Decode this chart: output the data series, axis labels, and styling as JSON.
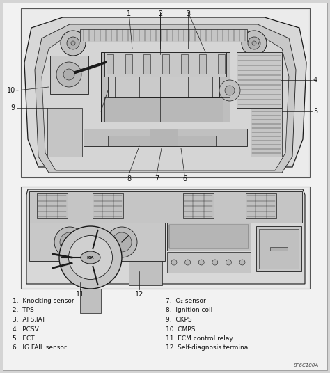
{
  "bg_color": "#e8e8e8",
  "outer_bg": "#d0d0d0",
  "line_color": "#1a1a1a",
  "text_color": "#111111",
  "fig_width": 4.74,
  "fig_height": 5.36,
  "dpi": 100,
  "legend_items_left": [
    "1.  Knocking sensor",
    "2.  TPS",
    "3.  AFS,IAT",
    "4.  PCSV",
    "5.  ECT",
    "6.  IG FAIL sensor"
  ],
  "legend_items_right": [
    "7.  O₂ sensor",
    "8.  Ignition coil",
    "9.  CKPS",
    "10. CMPS",
    "11. ECM control relay",
    "12. Self-diagnosis terminal"
  ],
  "ref_code": "8F6C180A"
}
